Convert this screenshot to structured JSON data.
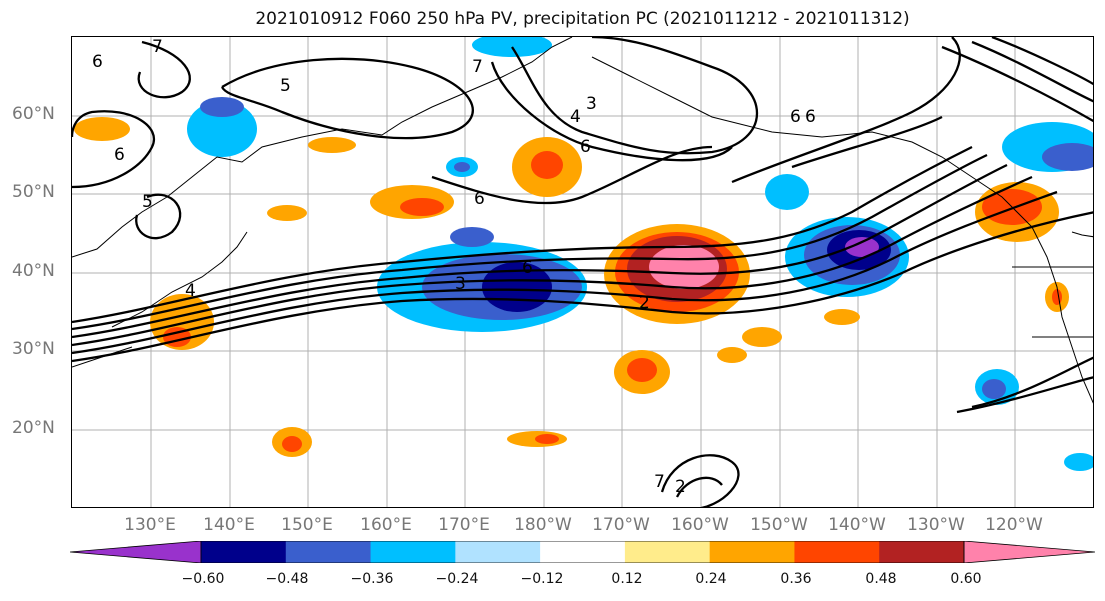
{
  "title": "2021010912 F060 250 hPa PV, precipitation PC (2021011212 - 2021011312)",
  "lat_labels": [
    "60°N",
    "50°N",
    "40°N",
    "30°N",
    "20°N"
  ],
  "lon_labels": [
    "130°E",
    "140°E",
    "150°E",
    "160°E",
    "170°E",
    "180°W",
    "170°W",
    "160°W",
    "150°W",
    "140°W",
    "130°W",
    "120°W"
  ],
  "colorbar": {
    "colors": [
      "#9932cc",
      "#00008b",
      "#3a5fcd",
      "#00bfff",
      "#b0e2ff",
      "#ffffff",
      "#ffec8b",
      "#ffa500",
      "#ff4500",
      "#b22222",
      "#ff82ab"
    ],
    "ticks": [
      "−0.60",
      "−0.48",
      "−0.36",
      "−0.24",
      "−0.12",
      "0.12",
      "0.24",
      "0.36",
      "0.48",
      "0.60"
    ]
  },
  "contour_labels": [
    "6",
    "7",
    "5",
    "6",
    "5",
    "7",
    "4",
    "3",
    "6",
    "6",
    "6",
    "4",
    "3",
    "2",
    "6",
    "7",
    "2",
    "6"
  ]
}
